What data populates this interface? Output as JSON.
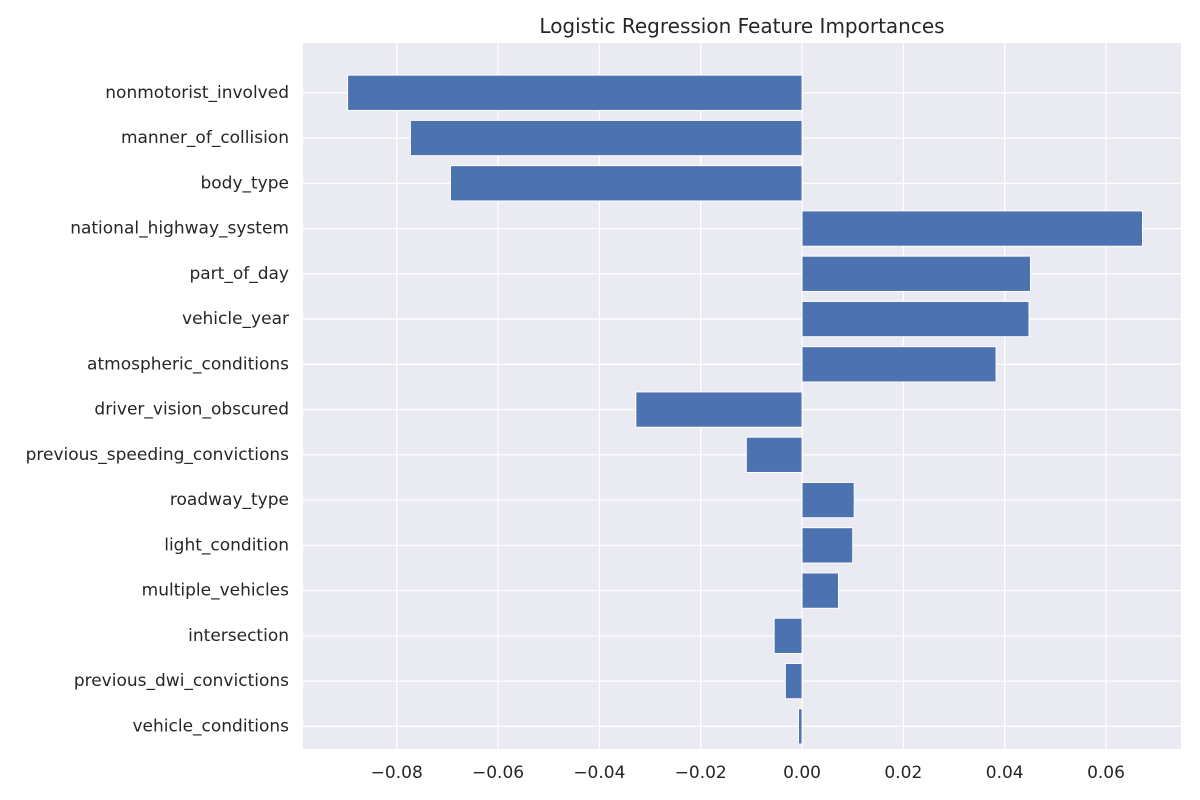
{
  "chart_data": {
    "type": "bar",
    "orientation": "horizontal",
    "title": "Logistic Regression Feature Importances",
    "xlabel": "",
    "ylabel": "",
    "xlim": [
      -0.0985,
      0.0748
    ],
    "x_ticks": [
      -0.08,
      -0.06,
      -0.04,
      -0.02,
      0.0,
      0.02,
      0.04,
      0.06
    ],
    "x_tick_labels": [
      "−0.08",
      "−0.06",
      "−0.04",
      "−0.02",
      "0.00",
      "0.02",
      "0.04",
      "0.06"
    ],
    "grid": true,
    "categories": [
      "nonmotorist_involved",
      "manner_of_collision",
      "body_type",
      "national_highway_system",
      "part_of_day",
      "vehicle_year",
      "atmospheric_conditions",
      "driver_vision_obscured",
      "previous_speeding_convictions",
      "roadway_type",
      "light_condition",
      "multiple_vehicles",
      "intersection",
      "previous_dwi_convictions",
      "vehicle_conditions"
    ],
    "values": [
      -0.0897,
      -0.0773,
      -0.0694,
      0.0672,
      0.0451,
      0.0448,
      0.0383,
      -0.0328,
      -0.011,
      0.0103,
      0.01,
      0.0072,
      -0.0055,
      -0.0033,
      -0.0007
    ],
    "colors": {
      "bar": "#4c72b0",
      "background": "#eaeaf2",
      "grid": "#ffffff",
      "text": "#262626"
    }
  }
}
